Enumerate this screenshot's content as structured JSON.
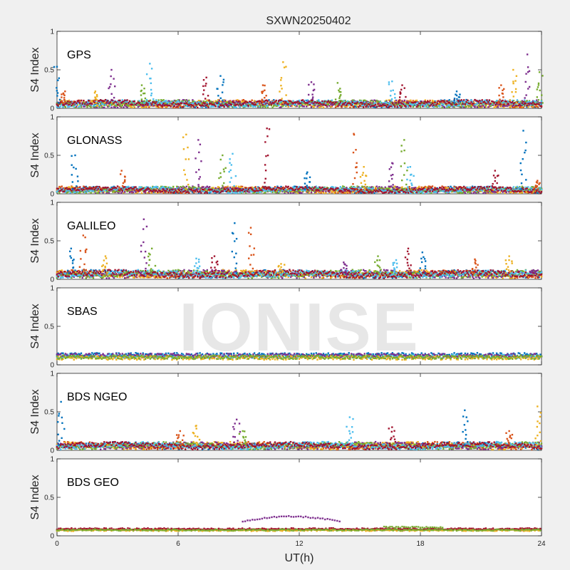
{
  "figure_title": "SXWN20250402",
  "watermark": "IONISE",
  "chart_data": {
    "type": "scatter",
    "title": "SXWN20250402",
    "xlabel": "UT(h)",
    "ylabel": "S4 Index",
    "xlim": [
      0,
      24
    ],
    "ylim": [
      0,
      1
    ],
    "xticks": [
      0,
      6,
      12,
      18,
      24
    ],
    "yticks": [
      0,
      0.5,
      1
    ],
    "grid": false,
    "series_colors": [
      "#0072BD",
      "#D95319",
      "#EDB120",
      "#7E2F8E",
      "#77AC30",
      "#4DBEEE",
      "#A2142F"
    ],
    "panels": [
      {
        "name": "GPS",
        "baseline": 0.07,
        "spikes": [
          [
            0.0,
            0.54
          ],
          [
            0.4,
            0.22
          ],
          [
            1.9,
            0.22
          ],
          [
            2.7,
            0.5
          ],
          [
            4.2,
            0.3
          ],
          [
            4.6,
            0.58
          ],
          [
            7.4,
            0.4
          ],
          [
            8.1,
            0.42
          ],
          [
            10.2,
            0.3
          ],
          [
            11.2,
            0.6
          ],
          [
            12.6,
            0.34
          ],
          [
            13.9,
            0.33
          ],
          [
            16.6,
            0.35
          ],
          [
            17.1,
            0.3
          ],
          [
            19.8,
            0.22
          ],
          [
            22.0,
            0.3
          ],
          [
            22.6,
            0.5
          ],
          [
            23.3,
            0.7
          ],
          [
            23.9,
            0.47
          ]
        ]
      },
      {
        "name": "GLONASS",
        "baseline": 0.06,
        "spikes": [
          [
            0.9,
            0.5
          ],
          [
            3.2,
            0.3
          ],
          [
            6.4,
            0.77
          ],
          [
            7.0,
            0.7
          ],
          [
            8.2,
            0.5
          ],
          [
            8.7,
            0.52
          ],
          [
            10.4,
            0.85
          ],
          [
            12.4,
            0.28
          ],
          [
            14.7,
            0.78
          ],
          [
            15.2,
            0.35
          ],
          [
            16.6,
            0.4
          ],
          [
            17.2,
            0.7
          ],
          [
            17.5,
            0.35
          ],
          [
            21.7,
            0.3
          ],
          [
            23.1,
            0.82
          ],
          [
            23.8,
            0.17
          ]
        ]
      },
      {
        "name": "GALILEO",
        "baseline": 0.08,
        "spikes": [
          [
            0.7,
            0.4
          ],
          [
            1.3,
            0.57
          ],
          [
            2.4,
            0.3
          ],
          [
            4.3,
            0.78
          ],
          [
            4.7,
            0.4
          ],
          [
            6.9,
            0.27
          ],
          [
            7.8,
            0.3
          ],
          [
            8.8,
            0.73
          ],
          [
            9.6,
            0.67
          ],
          [
            11.1,
            0.2
          ],
          [
            14.2,
            0.22
          ],
          [
            15.9,
            0.3
          ],
          [
            16.8,
            0.25
          ],
          [
            17.4,
            0.4
          ],
          [
            18.1,
            0.35
          ],
          [
            20.7,
            0.26
          ],
          [
            22.4,
            0.3
          ],
          [
            23.6,
            0.12
          ]
        ]
      },
      {
        "name": "SBAS",
        "baseline": 0.12,
        "spikes": []
      },
      {
        "name": "BDS NGEO",
        "baseline": 0.07,
        "spikes": [
          [
            0.2,
            0.63
          ],
          [
            6.1,
            0.25
          ],
          [
            6.9,
            0.32
          ],
          [
            8.9,
            0.4
          ],
          [
            9.2,
            0.25
          ],
          [
            14.5,
            0.43
          ],
          [
            16.6,
            0.3
          ],
          [
            20.2,
            0.52
          ],
          [
            22.4,
            0.25
          ],
          [
            23.8,
            0.57
          ]
        ]
      },
      {
        "name": "BDS GEO",
        "baseline": 0.08,
        "spikes": []
      }
    ]
  }
}
